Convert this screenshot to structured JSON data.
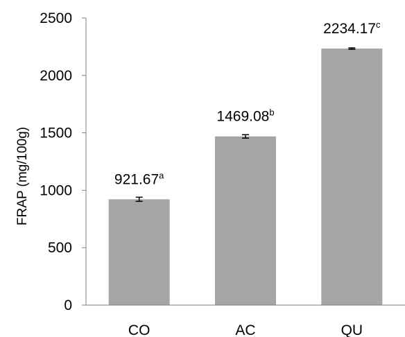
{
  "chart_data": {
    "type": "bar",
    "title": "",
    "xlabel": "",
    "ylabel": "FRAP (mg/100g)",
    "ylim": [
      0,
      2500
    ],
    "yticks": [
      0,
      500,
      1000,
      1500,
      2000,
      2500
    ],
    "categories": [
      "CO",
      "AC",
      "QU"
    ],
    "values": [
      921.67,
      1469.08,
      2234.17
    ],
    "errors": [
      18,
      15,
      6
    ],
    "data_labels": [
      "921.67",
      "1469.08",
      "2234.17"
    ],
    "significance_letters": [
      "a",
      "b",
      "c"
    ],
    "bar_color": "#a5a5a5",
    "grid": false,
    "legend": "none"
  }
}
